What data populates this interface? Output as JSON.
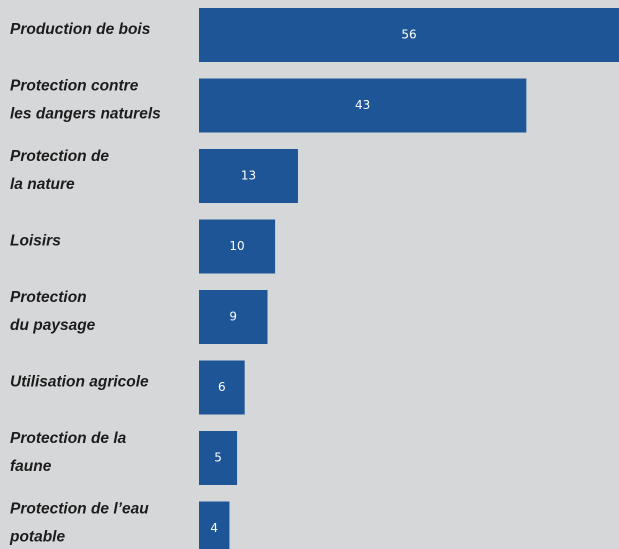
{
  "chart_data": {
    "type": "bar",
    "orientation": "horizontal",
    "color": "#1d5597",
    "categories": [
      [
        "Production de bois"
      ],
      [
        "Protection contre",
        "les dangers naturels"
      ],
      [
        "Protection de",
        "la nature"
      ],
      [
        "Loisirs"
      ],
      [
        "Protection",
        "du paysage"
      ],
      [
        "Utilisation agricole"
      ],
      [
        "Protection de la",
        "faune"
      ],
      [
        "Protection de l’eau",
        "potable"
      ]
    ],
    "values": [
      56,
      43,
      13,
      10,
      9,
      6,
      5,
      4
    ]
  }
}
